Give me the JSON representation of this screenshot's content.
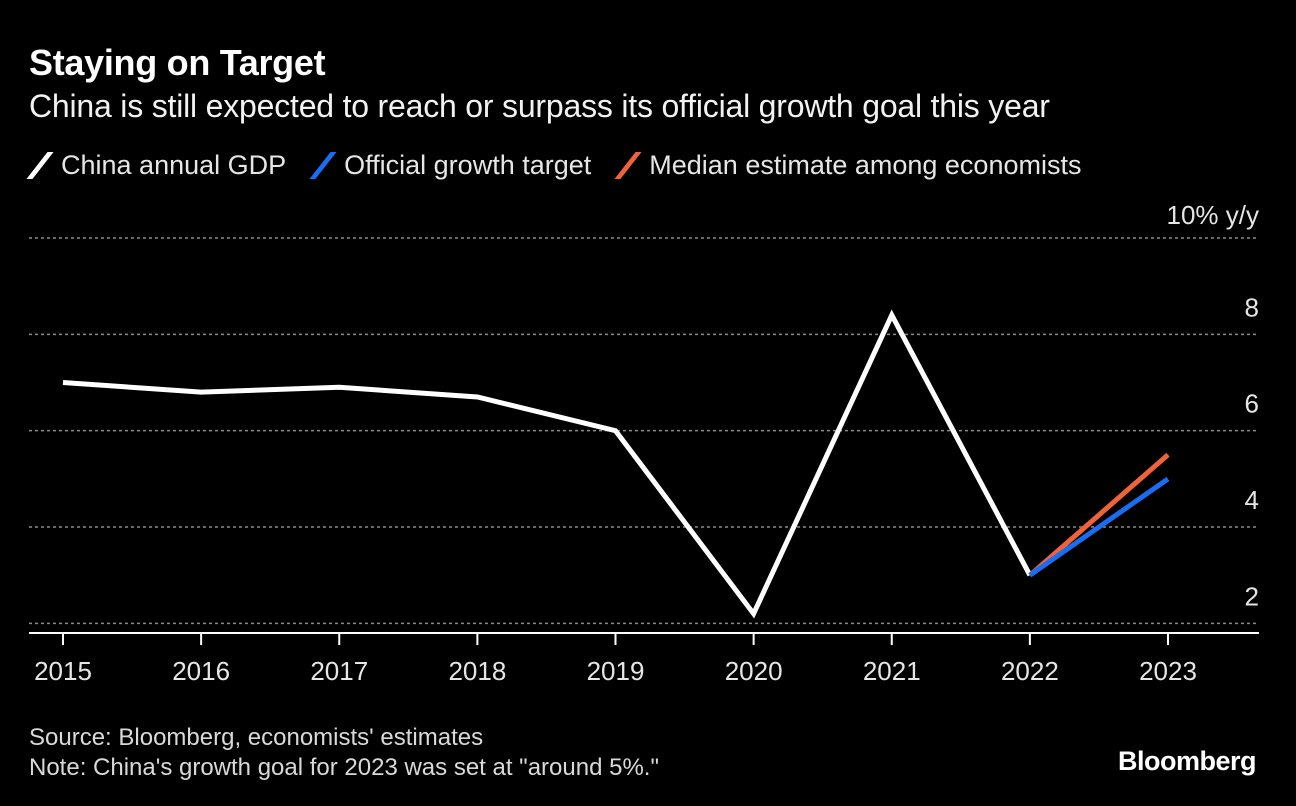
{
  "header": {
    "title": "Staying on Target",
    "subtitle": "China is still expected to reach or surpass its official growth goal this year"
  },
  "legend": [
    {
      "label": "China annual GDP",
      "color": "#ffffff"
    },
    {
      "label": "Official growth target",
      "color": "#1a6cf0"
    },
    {
      "label": "Median estimate among economists",
      "color": "#f0623a"
    }
  ],
  "chart_data": {
    "type": "line",
    "unit_label": "10% y/y",
    "x": [
      2015,
      2016,
      2017,
      2018,
      2019,
      2020,
      2021,
      2022,
      2023
    ],
    "x_tick_labels": [
      "2015",
      "2016",
      "2017",
      "2018",
      "2019",
      "2020",
      "2021",
      "2022",
      "2023"
    ],
    "y_ticks": [
      2,
      4,
      6,
      8,
      10
    ],
    "y_tick_labels": [
      "2",
      "4",
      "6",
      "8",
      ""
    ],
    "ylim": [
      1.8,
      10
    ],
    "series": [
      {
        "name": "China annual GDP",
        "color": "#ffffff",
        "x": [
          2015,
          2016,
          2017,
          2018,
          2019,
          2020,
          2021,
          2022
        ],
        "values": [
          7.0,
          6.8,
          6.9,
          6.7,
          6.0,
          2.2,
          8.4,
          3.0
        ]
      },
      {
        "name": "Median estimate among economists",
        "color": "#f0623a",
        "x": [
          2022,
          2023
        ],
        "values": [
          3.0,
          5.5
        ]
      },
      {
        "name": "Official growth target",
        "color": "#1a6cf0",
        "x": [
          2022,
          2023
        ],
        "values": [
          3.0,
          5.0
        ]
      }
    ],
    "grid": true,
    "legend_position": "top-left"
  },
  "footer": {
    "source": "Source: Bloomberg, economists' estimates",
    "note": "Note: China's growth goal for 2023 was set at \"around 5%.\"",
    "brand": "Bloomberg"
  }
}
